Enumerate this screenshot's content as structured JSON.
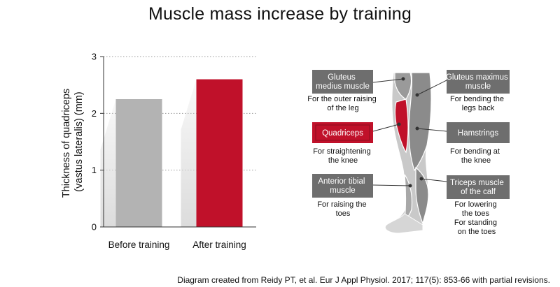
{
  "title": "Muscle mass increase by training",
  "caption": "Diagram created from Reidy PT, et al. Eur J Appl Physiol. 2017; 117(5): 853-66 with partial revisions.",
  "chart_data": {
    "type": "bar",
    "categories": [
      "Before training",
      "After training"
    ],
    "values": [
      2.25,
      2.6
    ],
    "ylabel_lines": [
      "Thickness of quadriceps",
      "(vastus lateralis) (mm)"
    ],
    "ylim": [
      0,
      3
    ],
    "yticks": [
      "0",
      "1",
      "2",
      "3"
    ],
    "grid": "dotted horizontal",
    "colors": [
      "#b3b3b3",
      "#c0112a"
    ]
  },
  "muscles": [
    {
      "name_lines": [
        "Gluteus",
        "medius muscle"
      ],
      "desc_lines": [
        "For the outer raising",
        "of the leg"
      ],
      "color": "#6e6e6e"
    },
    {
      "name_lines": [
        "Gluteus maximus",
        "muscle"
      ],
      "desc_lines": [
        "For bending the",
        "legs back"
      ],
      "color": "#6e6e6e"
    },
    {
      "name_lines": [
        "Quadriceps"
      ],
      "desc_lines": [
        "For straightening",
        "the knee"
      ],
      "color": "#c0112a"
    },
    {
      "name_lines": [
        "Hamstrings"
      ],
      "desc_lines": [
        "For bending at",
        "the knee"
      ],
      "color": "#6e6e6e"
    },
    {
      "name_lines": [
        "Anterior tibial",
        "muscle"
      ],
      "desc_lines": [
        "For raising the",
        "toes"
      ],
      "color": "#6e6e6e"
    },
    {
      "name_lines": [
        "Triceps muscle",
        "of the calf"
      ],
      "desc_lines": [
        "For lowering",
        "the toes",
        "For standing",
        "on the toes"
      ],
      "color": "#6e6e6e"
    }
  ]
}
